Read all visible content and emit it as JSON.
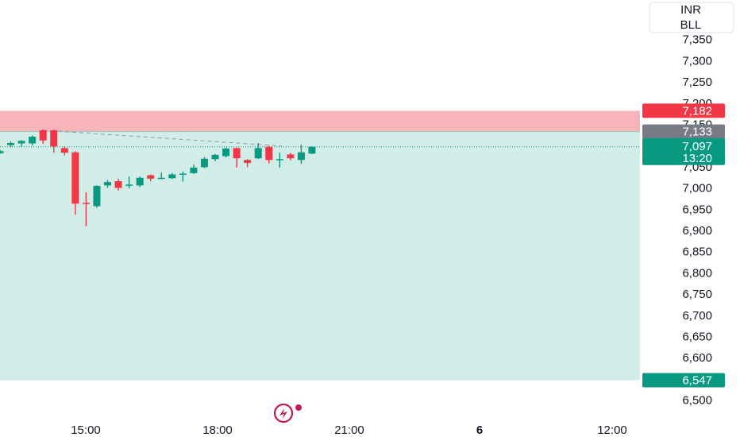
{
  "currency": {
    "line1": "INR",
    "line2": "BLL"
  },
  "price_tags": {
    "stop": "7,182",
    "entry": "7,133",
    "last": "7,097",
    "countdown": "13:20",
    "target": "6,547"
  },
  "colors": {
    "up": "#089981",
    "down": "#f23645",
    "stop_zone": "#f7b4ba",
    "target_zone": "#d2ede7",
    "entry_tag": "#787b86",
    "logo": "#c2185b"
  },
  "chart_data": {
    "type": "candlestick",
    "y_ticks": [
      "7,350",
      "7,300",
      "7,250",
      "7,200",
      "7,150",
      "7,050",
      "7,000",
      "6,950",
      "6,900",
      "6,850",
      "6,800",
      "6,750",
      "6,700",
      "6,650",
      "6,600",
      "6,500"
    ],
    "x_ticks": [
      "15:00",
      "18:00",
      "21:00",
      "6",
      "12:00"
    ],
    "ylim": [
      6500,
      7350
    ],
    "candles": [
      {
        "o": 7082,
        "c": 7087,
        "h": 7090,
        "l": 7080
      },
      {
        "o": 7101,
        "c": 7106,
        "h": 7110,
        "l": 7096
      },
      {
        "o": 7105,
        "c": 7111,
        "h": 7113,
        "l": 7097
      },
      {
        "o": 7105,
        "c": 7121,
        "h": 7124,
        "l": 7100
      },
      {
        "o": 7136,
        "c": 7112,
        "h": 7138,
        "l": 7104
      },
      {
        "o": 7136,
        "c": 7098,
        "h": 7138,
        "l": 7083
      },
      {
        "o": 7094,
        "c": 7083,
        "h": 7098,
        "l": 7077
      },
      {
        "o": 7084,
        "c": 6963,
        "h": 7087,
        "l": 6937
      },
      {
        "o": 6965,
        "c": 6963,
        "h": 6990,
        "l": 6910
      },
      {
        "o": 6957,
        "c": 7005,
        "h": 7006,
        "l": 6953
      },
      {
        "o": 7006,
        "c": 7014,
        "h": 7019,
        "l": 7000
      },
      {
        "o": 7016,
        "c": 7000,
        "h": 7022,
        "l": 6994
      },
      {
        "o": 7007,
        "c": 7008,
        "h": 7027,
        "l": 6999
      },
      {
        "o": 7006,
        "c": 7024,
        "h": 7027,
        "l": 7002
      },
      {
        "o": 7030,
        "c": 7022,
        "h": 7032,
        "l": 7016
      },
      {
        "o": 7023,
        "c": 7024,
        "h": 7036,
        "l": 7021
      },
      {
        "o": 7023,
        "c": 7032,
        "h": 7035,
        "l": 7021
      },
      {
        "o": 7034,
        "c": 7034,
        "h": 7039,
        "l": 7015
      },
      {
        "o": 7035,
        "c": 7048,
        "h": 7055,
        "l": 7033
      },
      {
        "o": 7049,
        "c": 7069,
        "h": 7073,
        "l": 7047
      },
      {
        "o": 7068,
        "c": 7078,
        "h": 7080,
        "l": 7063
      },
      {
        "o": 7075,
        "c": 7093,
        "h": 7095,
        "l": 7072
      },
      {
        "o": 7094,
        "c": 7070,
        "h": 7095,
        "l": 7048
      },
      {
        "o": 7066,
        "c": 7059,
        "h": 7068,
        "l": 7049
      },
      {
        "o": 7070,
        "c": 7094,
        "h": 7106,
        "l": 7068
      },
      {
        "o": 7097,
        "c": 7066,
        "h": 7099,
        "l": 7058
      },
      {
        "o": 7068,
        "c": 7068,
        "h": 7083,
        "l": 7048
      },
      {
        "o": 7079,
        "c": 7070,
        "h": 7083,
        "l": 7065
      },
      {
        "o": 7066,
        "c": 7084,
        "h": 7102,
        "l": 7057
      },
      {
        "o": 7081,
        "c": 7097,
        "h": 7098,
        "l": 7080
      }
    ],
    "position": {
      "side": "short",
      "entry": 7133,
      "stop": 7182,
      "target": 6547
    },
    "last_price": 7097
  }
}
